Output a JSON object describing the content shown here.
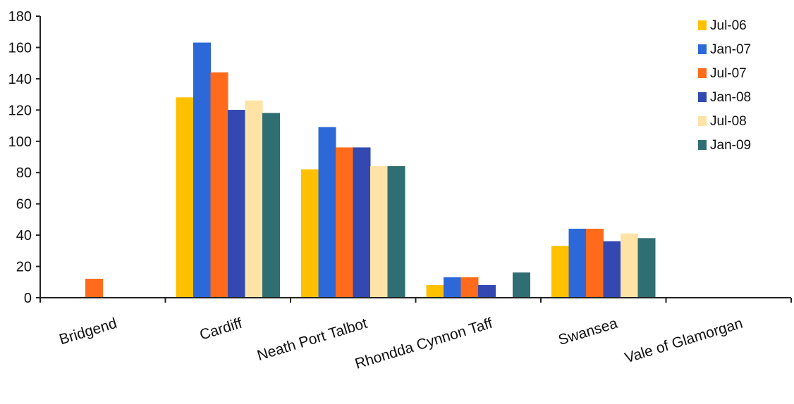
{
  "chart_data": {
    "type": "bar",
    "title": "",
    "xlabel": "",
    "ylabel": "",
    "ylim": [
      0,
      180
    ],
    "y_ticks": [
      "0",
      "20",
      "40",
      "60",
      "80",
      "100",
      "120",
      "140",
      "160",
      "180"
    ],
    "grid": false,
    "legend_position": "top-right",
    "categories": [
      "Bridgend",
      "Cardiff",
      "Neath Port Talbot",
      "Rhondda Cynnon Taff",
      "Swansea",
      "Vale of Glamorgan"
    ],
    "series": [
      {
        "name": "Jul-06",
        "color": "#ffc000",
        "values": [
          0,
          128,
          82,
          8,
          33,
          0
        ]
      },
      {
        "name": "Jan-07",
        "color": "#2d68d8",
        "values": [
          0,
          163,
          109,
          13,
          44,
          0
        ]
      },
      {
        "name": "Jul-07",
        "color": "#ff6b1a",
        "values": [
          12,
          144,
          96,
          13,
          44,
          0
        ]
      },
      {
        "name": "Jan-08",
        "color": "#3348b0",
        "values": [
          0,
          120,
          96,
          8,
          36,
          0
        ]
      },
      {
        "name": "Jul-08",
        "color": "#ffe3a6",
        "values": [
          0,
          126,
          84,
          0,
          41,
          0
        ]
      },
      {
        "name": "Jan-09",
        "color": "#2f6e72",
        "values": [
          0,
          118,
          84,
          16,
          38,
          0
        ]
      }
    ]
  }
}
